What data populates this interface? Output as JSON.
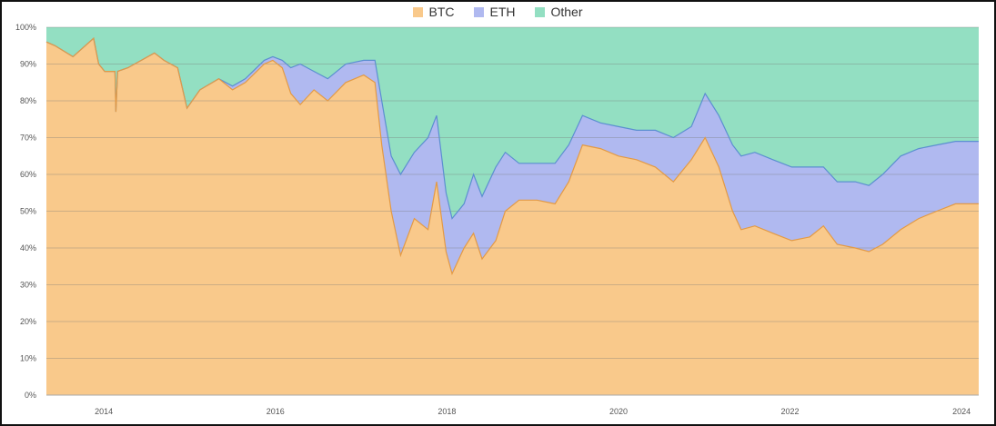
{
  "chart_data": {
    "type": "area",
    "stacked": true,
    "title": "",
    "xlabel": "",
    "ylabel": "",
    "ylim": [
      0,
      100
    ],
    "xlim": [
      2013.33,
      2024.2
    ],
    "y_ticks": [
      "0%",
      "10%",
      "20%",
      "30%",
      "40%",
      "50%",
      "60%",
      "70%",
      "80%",
      "90%",
      "100%"
    ],
    "x_ticks": [
      {
        "value": 2014,
        "label": "2014"
      },
      {
        "value": 2016,
        "label": "2016"
      },
      {
        "value": 2018,
        "label": "2018"
      },
      {
        "value": 2020,
        "label": "2020"
      },
      {
        "value": 2022,
        "label": "2022"
      },
      {
        "value": 2024,
        "label": "2024"
      }
    ],
    "grid": true,
    "legend_position": "top-center",
    "legend": [
      "BTC",
      "ETH",
      "Other"
    ],
    "colors": {
      "BTC": "#f9c98b",
      "ETH": "#b0b9f0",
      "Other": "#93dfc2",
      "btc_line": "#e39a45",
      "total_line": "#5b8fd0"
    },
    "x": [
      2013.33,
      2013.43,
      2013.64,
      2013.88,
      2013.94,
      2014.01,
      2014.13,
      2014.14,
      2014.16,
      2014.28,
      2014.59,
      2014.7,
      2014.86,
      2014.97,
      2015.12,
      2015.34,
      2015.5,
      2015.65,
      2015.87,
      2015.97,
      2016.08,
      2016.18,
      2016.29,
      2016.45,
      2016.61,
      2016.82,
      2017.03,
      2017.16,
      2017.24,
      2017.35,
      2017.46,
      2017.62,
      2017.78,
      2017.88,
      2017.99,
      2018.06,
      2018.2,
      2018.31,
      2018.41,
      2018.57,
      2018.68,
      2018.84,
      2019.05,
      2019.26,
      2019.42,
      2019.58,
      2019.79,
      2020.0,
      2020.21,
      2020.43,
      2020.64,
      2020.85,
      2021.01,
      2021.17,
      2021.33,
      2021.43,
      2021.59,
      2021.8,
      2022.02,
      2022.23,
      2022.39,
      2022.55,
      2022.76,
      2022.92,
      2023.08,
      2023.29,
      2023.5,
      2023.71,
      2023.93,
      2024.2
    ],
    "series": [
      {
        "name": "BTC",
        "values": [
          96,
          95,
          92,
          97,
          90,
          88,
          88,
          77,
          88,
          89,
          93,
          91,
          89,
          78,
          83,
          86,
          83,
          85,
          90,
          91,
          89,
          82,
          79,
          83,
          80,
          85,
          87,
          85,
          68,
          50,
          38,
          48,
          45,
          58,
          39,
          33,
          40,
          44,
          37,
          42,
          50,
          53,
          53,
          52,
          58,
          68,
          67,
          65,
          64,
          62,
          58,
          64,
          70,
          62,
          50,
          45,
          46,
          44,
          42,
          43,
          46,
          41,
          40,
          39,
          41,
          45,
          48,
          50,
          52,
          52
        ]
      },
      {
        "name": "ETH",
        "values": [
          0,
          0,
          0,
          0,
          0,
          0,
          0,
          0,
          0,
          0,
          0,
          0,
          0,
          0,
          0,
          0,
          1,
          1,
          1,
          1,
          2,
          7,
          11,
          5,
          6,
          5,
          4,
          6,
          12,
          15,
          22,
          18,
          25,
          18,
          16,
          15,
          12,
          16,
          17,
          20,
          16,
          10,
          10,
          11,
          10,
          8,
          7,
          8,
          8,
          10,
          12,
          9,
          12,
          14,
          18,
          20,
          20,
          20,
          20,
          19,
          16,
          17,
          18,
          18,
          19,
          20,
          19,
          18,
          17,
          17
        ]
      },
      {
        "name": "Other",
        "values": [
          4,
          5,
          8,
          3,
          10,
          12,
          12,
          23,
          12,
          11,
          7,
          9,
          11,
          22,
          17,
          14,
          16,
          14,
          9,
          8,
          9,
          11,
          10,
          12,
          14,
          10,
          9,
          9,
          20,
          35,
          40,
          34,
          30,
          24,
          45,
          52,
          48,
          40,
          46,
          38,
          34,
          37,
          37,
          37,
          32,
          24,
          26,
          27,
          28,
          28,
          30,
          27,
          18,
          24,
          32,
          35,
          34,
          36,
          38,
          38,
          38,
          42,
          42,
          43,
          40,
          35,
          33,
          32,
          31,
          31
        ]
      }
    ]
  }
}
